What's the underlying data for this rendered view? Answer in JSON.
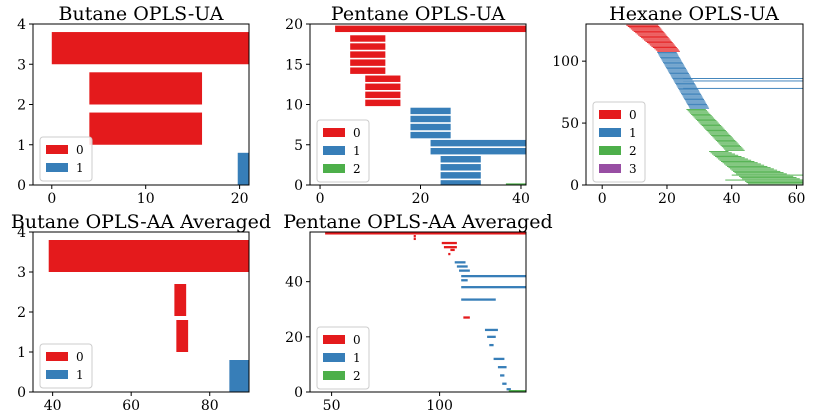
{
  "colors": {
    "0": "#e41a1c",
    "1": "#377eb8",
    "2": "#4daf4a",
    "3": "#984ea3"
  },
  "chart_data": [
    {
      "type": "bar",
      "orientation": "horizontal",
      "title": "Butane OPLS-UA",
      "xlim": [
        -2,
        21
      ],
      "ylim": [
        0,
        4
      ],
      "xticks": [
        0,
        10,
        20
      ],
      "yticks": [
        0,
        1,
        2,
        3,
        4
      ],
      "legend": [
        "0",
        "1"
      ],
      "bars": [
        {
          "y": 3.4,
          "height": 0.8,
          "start": 0,
          "end": 21,
          "group": "0"
        },
        {
          "y": 2.4,
          "height": 0.8,
          "start": 4,
          "end": 16,
          "group": "0"
        },
        {
          "y": 1.4,
          "height": 0.8,
          "start": 4,
          "end": 16,
          "group": "0"
        },
        {
          "y": 0.4,
          "height": 0.8,
          "start": 19.8,
          "end": 21,
          "group": "1"
        }
      ]
    },
    {
      "type": "bar",
      "orientation": "horizontal",
      "title": "Pentane OPLS-UA",
      "xlim": [
        -2,
        41
      ],
      "ylim": [
        0,
        20
      ],
      "xticks": [
        0,
        20,
        40
      ],
      "yticks": [
        0,
        5,
        10,
        15,
        20
      ],
      "legend": [
        "0",
        "1",
        "2"
      ],
      "bars": [
        {
          "y": 19.4,
          "height": 0.8,
          "start": 3,
          "end": 41,
          "group": "0"
        },
        {
          "y": 18.2,
          "height": 0.8,
          "start": 6,
          "end": 13,
          "group": "0"
        },
        {
          "y": 17.2,
          "height": 0.8,
          "start": 6,
          "end": 13,
          "group": "0"
        },
        {
          "y": 16.2,
          "height": 0.8,
          "start": 6,
          "end": 13,
          "group": "0"
        },
        {
          "y": 15.2,
          "height": 0.8,
          "start": 6,
          "end": 13,
          "group": "0"
        },
        {
          "y": 14.2,
          "height": 0.8,
          "start": 6,
          "end": 13,
          "group": "0"
        },
        {
          "y": 13.2,
          "height": 0.8,
          "start": 9,
          "end": 16,
          "group": "0"
        },
        {
          "y": 12.2,
          "height": 0.8,
          "start": 9,
          "end": 16,
          "group": "0"
        },
        {
          "y": 11.2,
          "height": 0.8,
          "start": 9,
          "end": 16,
          "group": "0"
        },
        {
          "y": 10.2,
          "height": 0.8,
          "start": 9,
          "end": 16,
          "group": "0"
        },
        {
          "y": 9.2,
          "height": 0.8,
          "start": 18,
          "end": 26,
          "group": "1"
        },
        {
          "y": 8.2,
          "height": 0.8,
          "start": 18,
          "end": 26,
          "group": "1"
        },
        {
          "y": 7.2,
          "height": 0.8,
          "start": 18,
          "end": 26,
          "group": "1"
        },
        {
          "y": 6.2,
          "height": 0.8,
          "start": 18,
          "end": 26,
          "group": "1"
        },
        {
          "y": 5.2,
          "height": 0.8,
          "start": 22,
          "end": 41,
          "group": "1"
        },
        {
          "y": 4.2,
          "height": 0.8,
          "start": 22,
          "end": 41,
          "group": "1"
        },
        {
          "y": 3.2,
          "height": 0.8,
          "start": 24,
          "end": 32,
          "group": "1"
        },
        {
          "y": 2.2,
          "height": 0.8,
          "start": 24,
          "end": 32,
          "group": "1"
        },
        {
          "y": 1.2,
          "height": 0.8,
          "start": 24,
          "end": 32,
          "group": "1"
        },
        {
          "y": 0.2,
          "height": 0.8,
          "start": 24,
          "end": 32,
          "group": "1"
        },
        {
          "y": -0.2,
          "height": 0.8,
          "start": 37,
          "end": 41,
          "group": "2"
        }
      ]
    },
    {
      "type": "bar",
      "orientation": "horizontal",
      "title": "Hexane OPLS-UA",
      "xlim": [
        -5,
        62
      ],
      "ylim": [
        0,
        130
      ],
      "xticks": [
        0,
        20,
        40,
        60
      ],
      "yticks": [
        0,
        50,
        100
      ],
      "legend": [
        "0",
        "1",
        "2",
        "3"
      ],
      "segments": [
        {
          "y_from": 130,
          "y_to": 108,
          "x_from": 7,
          "x_to": 17,
          "len_from": 10,
          "len_to": 7,
          "group": "0"
        },
        {
          "y_from": 107,
          "y_to": 62,
          "x_from": 17,
          "x_to": 27,
          "len_from": 6,
          "len_to": 6,
          "group": "1"
        },
        {
          "y_from": 61,
          "y_to": 28,
          "x_from": 26,
          "x_to": 38,
          "len_from": 6,
          "len_to": 6,
          "group": "2"
        },
        {
          "y_from": 27,
          "y_to": 1,
          "x_from": 33,
          "x_to": 45,
          "len_from": 6,
          "len_to": 20,
          "group": "2"
        }
      ],
      "long_bars": [
        {
          "y": 130,
          "start": 7,
          "end": 62,
          "group": "0"
        },
        {
          "y": 86,
          "start": 25,
          "end": 62,
          "group": "1"
        },
        {
          "y": 84,
          "start": 25,
          "end": 62,
          "group": "1"
        },
        {
          "y": 78,
          "start": 25,
          "end": 62,
          "group": "1"
        },
        {
          "y": 8,
          "start": 40,
          "end": 62,
          "group": "2"
        },
        {
          "y": 4,
          "start": 38,
          "end": 62,
          "group": "2"
        }
      ]
    },
    {
      "type": "bar",
      "orientation": "horizontal",
      "title": "Butane OPLS-AA Averaged",
      "xlim": [
        35,
        90
      ],
      "ylim": [
        0,
        4
      ],
      "xticks": [
        40,
        60,
        80
      ],
      "yticks": [
        0,
        1,
        2,
        3,
        4
      ],
      "legend": [
        "0",
        "1"
      ],
      "bars": [
        {
          "y": 3.4,
          "height": 0.8,
          "start": 39,
          "end": 90,
          "group": "0"
        },
        {
          "y": 2.3,
          "height": 0.8,
          "start": 71,
          "end": 74,
          "group": "0"
        },
        {
          "y": 1.4,
          "height": 0.8,
          "start": 71.5,
          "end": 74.5,
          "group": "0"
        },
        {
          "y": 0.4,
          "height": 0.8,
          "start": 85,
          "end": 90,
          "group": "1"
        }
      ]
    },
    {
      "type": "bar",
      "orientation": "horizontal",
      "title": "Pentane OPLS-AA Averaged",
      "xlim": [
        40,
        140
      ],
      "ylim": [
        0,
        58
      ],
      "xticks": [
        50,
        100
      ],
      "yticks": [
        0,
        20,
        40
      ],
      "legend": [
        "0",
        "1",
        "2"
      ],
      "bars": [
        {
          "y": 57.5,
          "start": 47,
          "end": 140,
          "group": "0"
        },
        {
          "y": 56.5,
          "start": 88,
          "end": 89,
          "group": "0"
        },
        {
          "y": 55.5,
          "start": 88,
          "end": 89,
          "group": "0"
        },
        {
          "y": 54,
          "start": 101,
          "end": 108,
          "group": "0"
        },
        {
          "y": 52.5,
          "start": 102,
          "end": 108,
          "group": "0"
        },
        {
          "y": 51.5,
          "start": 105,
          "end": 107,
          "group": "0"
        },
        {
          "y": 50,
          "start": 104,
          "end": 105,
          "group": "0"
        },
        {
          "y": 47,
          "start": 107,
          "end": 112,
          "group": "1"
        },
        {
          "y": 45.5,
          "start": 108,
          "end": 113,
          "group": "1"
        },
        {
          "y": 44,
          "start": 109,
          "end": 114,
          "group": "1"
        },
        {
          "y": 42,
          "start": 110,
          "end": 140,
          "group": "1"
        },
        {
          "y": 40.5,
          "start": 110,
          "end": 113,
          "group": "1"
        },
        {
          "y": 38,
          "start": 110,
          "end": 140,
          "group": "1"
        },
        {
          "y": 33.5,
          "start": 110,
          "end": 126,
          "group": "1"
        },
        {
          "y": 27,
          "start": 111,
          "end": 114,
          "group": "0"
        },
        {
          "y": 22.5,
          "start": 121,
          "end": 127,
          "group": "1"
        },
        {
          "y": 20,
          "start": 122,
          "end": 126,
          "group": "1"
        },
        {
          "y": 17,
          "start": 123,
          "end": 125,
          "group": "1"
        },
        {
          "y": 12,
          "start": 125,
          "end": 130,
          "group": "1"
        },
        {
          "y": 9,
          "start": 127,
          "end": 131,
          "group": "1"
        },
        {
          "y": 6,
          "start": 128,
          "end": 130,
          "group": "1"
        },
        {
          "y": 3,
          "start": 129,
          "end": 131,
          "group": "1"
        },
        {
          "y": 1,
          "start": 131,
          "end": 133,
          "group": "1"
        },
        {
          "y": 0.3,
          "start": 132,
          "end": 140,
          "group": "2"
        }
      ]
    }
  ]
}
